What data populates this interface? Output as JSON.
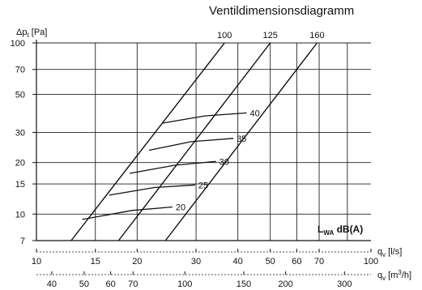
{
  "page_title": "Ventildimensionsdiagramm",
  "chart_data": {
    "type": "line",
    "title": "Ventildimensionsdiagramm",
    "x_scale": "log",
    "y_scale": "log",
    "ylabel": "Δp_t [Pa]",
    "ylabel_main": "Δp",
    "ylabel_sub": "t",
    "ylabel_unit": " [Pa]",
    "xlabel_ls": "q_v [l/s]",
    "xlabel_ls_main": "q",
    "xlabel_ls_sub": "v",
    "xlabel_ls_unit": " [l/s]",
    "xlabel_m3h": "q_v [m³/h]",
    "xlabel_m3h_main": "q",
    "xlabel_m3h_sub": "v",
    "xlabel_m3h_unit_pre": " [m",
    "xlabel_m3h_unit_sup": "3",
    "xlabel_m3h_unit_post": "/h]",
    "x_ls_range": [
      10,
      100
    ],
    "y_range": [
      7,
      100
    ],
    "y_ticks": [
      7,
      10,
      15,
      20,
      30,
      50,
      70,
      100
    ],
    "x_ls_ticks": [
      10,
      15,
      20,
      30,
      40,
      50,
      60,
      70,
      100
    ],
    "x_m3h_ticks": [
      40,
      50,
      60,
      70,
      100,
      150,
      200,
      300
    ],
    "grid": true,
    "series": [
      {
        "name": "100",
        "points": [
          [
            12.7,
            7
          ],
          [
            36.5,
            100
          ]
        ]
      },
      {
        "name": "125",
        "points": [
          [
            17.6,
            7
          ],
          [
            50,
            100
          ]
        ]
      },
      {
        "name": "160",
        "points": [
          [
            24.3,
            7
          ],
          [
            69,
            100
          ]
        ]
      }
    ],
    "sound_lines": [
      {
        "label": "20",
        "points": [
          [
            13.7,
            9.3
          ],
          [
            19.3,
            10.5
          ],
          [
            25.5,
            11
          ]
        ]
      },
      {
        "label": "25",
        "points": [
          [
            16.5,
            12.9
          ],
          [
            22.5,
            14.3
          ],
          [
            29.8,
            14.8
          ]
        ]
      },
      {
        "label": "30",
        "points": [
          [
            19.0,
            17.3
          ],
          [
            26.0,
            19.3
          ],
          [
            34.4,
            20.3
          ]
        ]
      },
      {
        "label": "35",
        "points": [
          [
            21.7,
            23.6
          ],
          [
            29.0,
            26.5
          ],
          [
            38.8,
            27.7
          ]
        ]
      },
      {
        "label": "40",
        "points": [
          [
            23.8,
            34.0
          ],
          [
            32.0,
            37.5
          ],
          [
            42.5,
            39.0
          ]
        ]
      }
    ],
    "legend_main": "L",
    "legend_sub": "WA",
    "legend_unit": " dB(A)",
    "legend_placement": "bottom-right"
  }
}
